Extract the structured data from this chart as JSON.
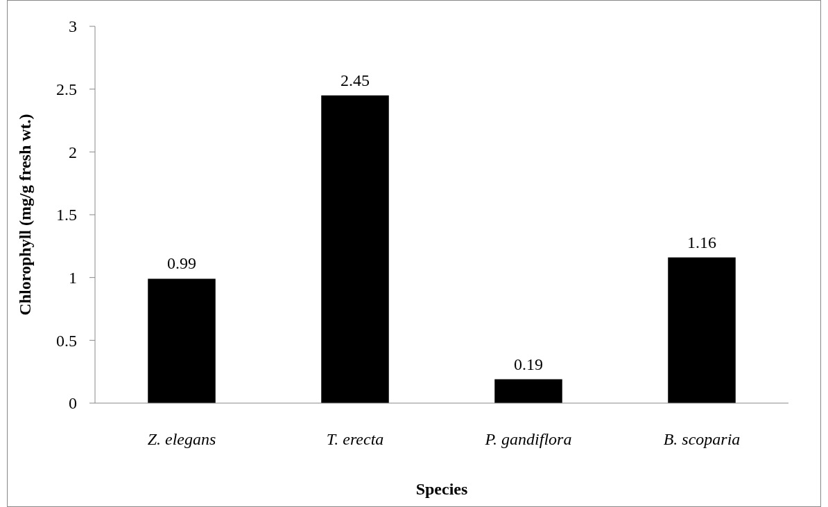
{
  "chart_data": {
    "type": "bar",
    "xlabel": "Species",
    "ylabel": "Chlorophyll (mg/g fresh wt.)",
    "categories": [
      "Z. elegans",
      "T. erecta",
      "P. gandiflora",
      "B. scoparia"
    ],
    "values": [
      0.99,
      2.45,
      0.19,
      1.16
    ],
    "color": "#000000",
    "ylim": [
      0,
      3
    ],
    "yticks": [
      0,
      0.5,
      1,
      1.5,
      2,
      2.5,
      3
    ],
    "grid": false,
    "data_labels": true
  }
}
